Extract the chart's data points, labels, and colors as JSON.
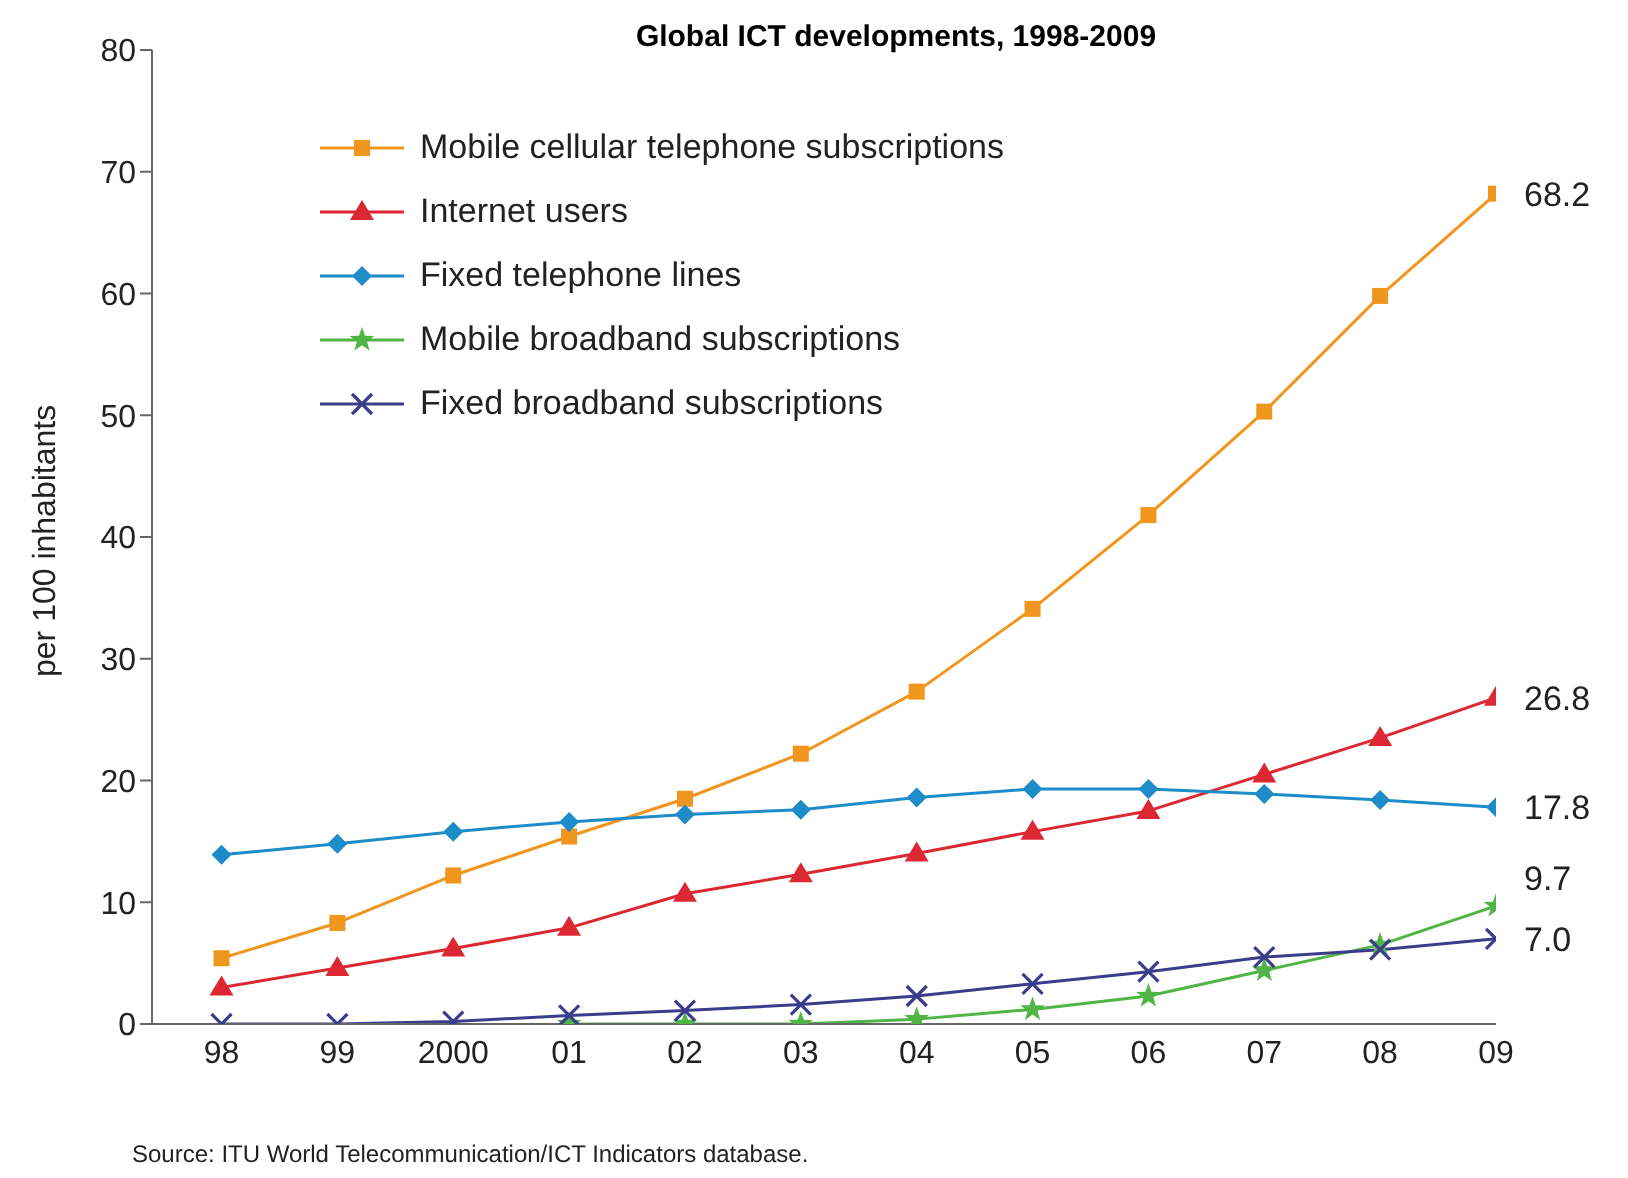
{
  "chart_data": {
    "type": "line",
    "title": "Global ICT developments, 1998-2009",
    "ylabel": "per 100 inhabitants",
    "categories": [
      "98",
      "99",
      "2000",
      "01",
      "02",
      "03",
      "04",
      "05",
      "06",
      "07",
      "08",
      "09"
    ],
    "series": [
      {
        "name": "Mobile cellular telephone subscriptions",
        "color": "#f0961e",
        "marker": "square",
        "values": [
          5.4,
          8.3,
          12.2,
          15.4,
          18.5,
          22.2,
          27.3,
          34.1,
          41.8,
          50.3,
          59.8,
          68.2
        ]
      },
      {
        "name": "Internet users",
        "color": "#dc2832",
        "marker": "triangle",
        "values": [
          3.0,
          4.6,
          6.2,
          7.9,
          10.7,
          12.3,
          14.0,
          15.8,
          17.5,
          20.5,
          23.5,
          26.8
        ]
      },
      {
        "name": "Fixed telephone lines",
        "color": "#1e8cc8",
        "marker": "diamond",
        "values": [
          13.9,
          14.8,
          15.8,
          16.6,
          17.2,
          17.6,
          18.6,
          19.3,
          19.3,
          18.9,
          18.4,
          17.8
        ]
      },
      {
        "name": "Mobile broadband subscriptions",
        "color": "#50b446",
        "marker": "star",
        "values": [
          null,
          null,
          null,
          0,
          0,
          0,
          0.4,
          1.2,
          2.3,
          4.4,
          6.5,
          9.7
        ]
      },
      {
        "name": "Fixed broadband subscriptions",
        "color": "#3c3c8c",
        "marker": "cross",
        "values": [
          0,
          0,
          0.2,
          0.7,
          1.1,
          1.6,
          2.3,
          3.3,
          4.3,
          5.5,
          6.1,
          7.0
        ]
      }
    ],
    "ylim": [
      0,
      80
    ],
    "yticks": [
      0,
      10,
      20,
      30,
      40,
      50,
      60,
      70,
      80
    ],
    "grid": false,
    "legend": "top left",
    "line_style": "solid",
    "annotations": [
      {
        "text": "68.2",
        "x": "09",
        "y": 68.2
      },
      {
        "text": "26.8",
        "x": "09",
        "y": 26.8
      },
      {
        "text": "17.8",
        "x": "09",
        "y": 17.8
      },
      {
        "text": "9.7",
        "x": "09",
        "y": 9.7
      },
      {
        "text": "7.0",
        "x": "09",
        "y": 7.0
      },
      "Source: ITU World Telecommunication/ICT Indicators database."
    ]
  }
}
